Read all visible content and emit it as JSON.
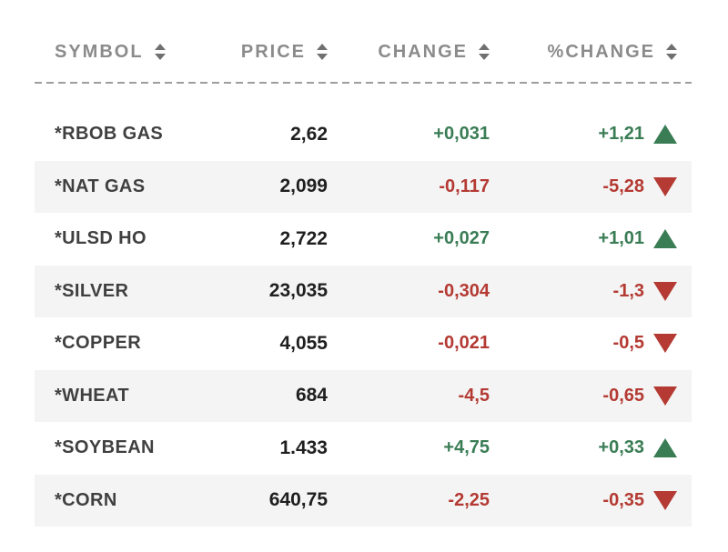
{
  "table": {
    "columns": [
      {
        "id": "symbol",
        "label": "SYMBOL"
      },
      {
        "id": "price",
        "label": "PRICE"
      },
      {
        "id": "change",
        "label": "CHANGE"
      },
      {
        "id": "pct_change",
        "label": "%CHANGE"
      }
    ],
    "rows": [
      {
        "symbol": "*RBOB GAS",
        "price": "2,62",
        "change": "+0,031",
        "pct_change": "+1,21",
        "direction": "up"
      },
      {
        "symbol": "*NAT GAS",
        "price": "2,099",
        "change": "-0,117",
        "pct_change": "-5,28",
        "direction": "down"
      },
      {
        "symbol": "*ULSD HO",
        "price": "2,722",
        "change": "+0,027",
        "pct_change": "+1,01",
        "direction": "up"
      },
      {
        "symbol": "*SILVER",
        "price": "23,035",
        "change": "-0,304",
        "pct_change": "-1,3",
        "direction": "down"
      },
      {
        "symbol": "*COPPER",
        "price": "4,055",
        "change": "-0,021",
        "pct_change": "-0,5",
        "direction": "down"
      },
      {
        "symbol": "*WHEAT",
        "price": "684",
        "change": "-4,5",
        "pct_change": "-0,65",
        "direction": "down"
      },
      {
        "symbol": "*SOYBEAN",
        "price": "1.433",
        "change": "+4,75",
        "pct_change": "+0,33",
        "direction": "up"
      },
      {
        "symbol": "*CORN",
        "price": "640,75",
        "change": "-2,25",
        "pct_change": "-0,35",
        "direction": "down"
      }
    ]
  },
  "colors": {
    "up_green": "#3a7d55",
    "down_red": "#b43a33",
    "header_text": "#8b8b8b",
    "symbol_text": "#404040",
    "price_text": "#1f1f1f",
    "row_alt_bg": "#f4f4f4",
    "divider": "#9e9e9e"
  }
}
